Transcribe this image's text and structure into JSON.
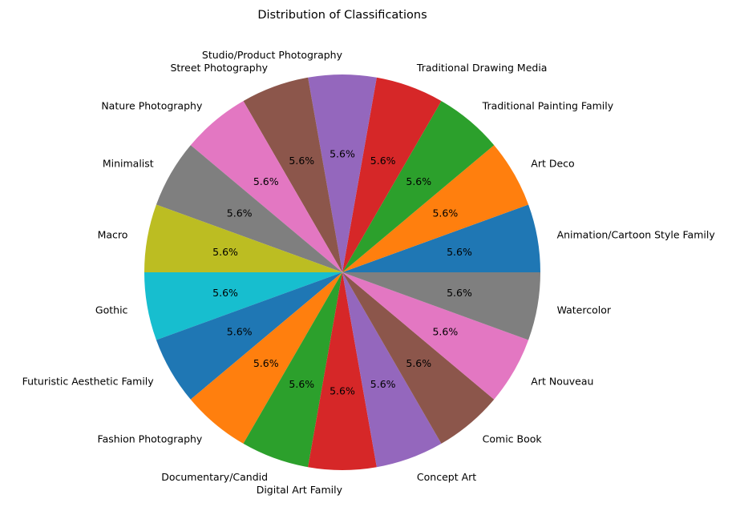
{
  "chart_data": {
    "type": "pie",
    "title": "Distribution of Classifications",
    "start_angle_deg": 0,
    "direction": "counterclockwise",
    "slices": [
      {
        "label": "Animation/Cartoon Style Family",
        "value": 5.6,
        "display": "5.6%",
        "color": "#1f77b4"
      },
      {
        "label": "Art Deco",
        "value": 5.6,
        "display": "5.6%",
        "color": "#ff7f0e"
      },
      {
        "label": "Traditional Painting Family",
        "value": 5.6,
        "display": "5.6%",
        "color": "#2ca02c"
      },
      {
        "label": "Traditional Drawing Media",
        "value": 5.6,
        "display": "5.6%",
        "color": "#d62728"
      },
      {
        "label": "Studio/Product Photography",
        "value": 5.6,
        "display": "5.6%",
        "color": "#9467bd"
      },
      {
        "label": "Street Photography",
        "value": 5.6,
        "display": "5.6%",
        "color": "#8c564b"
      },
      {
        "label": "Nature Photography",
        "value": 5.6,
        "display": "5.6%",
        "color": "#e377c2"
      },
      {
        "label": "Minimalist",
        "value": 5.6,
        "display": "5.6%",
        "color": "#7f7f7f"
      },
      {
        "label": "Macro",
        "value": 5.6,
        "display": "5.6%",
        "color": "#bcbd22"
      },
      {
        "label": "Gothic",
        "value": 5.6,
        "display": "5.6%",
        "color": "#17becf"
      },
      {
        "label": "Futuristic Aesthetic Family",
        "value": 5.6,
        "display": "5.6%",
        "color": "#1f77b4"
      },
      {
        "label": "Fashion Photography",
        "value": 5.6,
        "display": "5.6%",
        "color": "#ff7f0e"
      },
      {
        "label": "Documentary/Candid",
        "value": 5.6,
        "display": "5.6%",
        "color": "#2ca02c"
      },
      {
        "label": "Digital Art Family",
        "value": 5.6,
        "display": "5.6%",
        "color": "#d62728"
      },
      {
        "label": "Concept Art",
        "value": 5.6,
        "display": "5.6%",
        "color": "#9467bd"
      },
      {
        "label": "Comic Book",
        "value": 5.6,
        "display": "5.6%",
        "color": "#8c564b"
      },
      {
        "label": "Art Nouveau",
        "value": 5.6,
        "display": "5.6%",
        "color": "#e377c2"
      },
      {
        "label": "Watercolor",
        "value": 5.6,
        "display": "5.6%",
        "color": "#7f7f7f"
      }
    ]
  }
}
